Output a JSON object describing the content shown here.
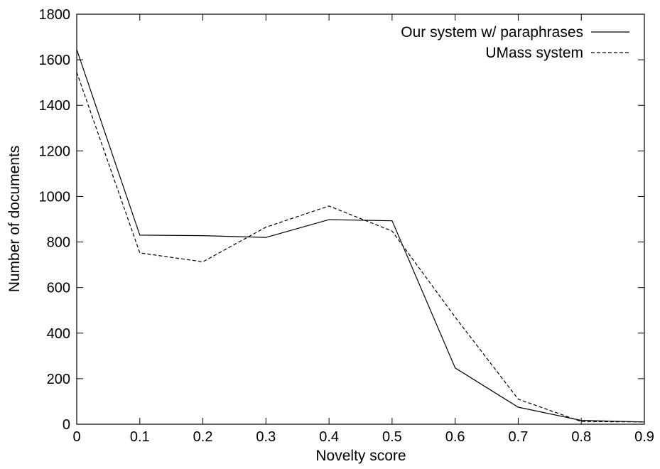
{
  "chart_data": {
    "type": "line",
    "title": "",
    "xlabel": "Novelty score",
    "ylabel": "Number of documents",
    "xlim": [
      0,
      0.9
    ],
    "ylim": [
      0,
      1800
    ],
    "xticks": [
      "0",
      "0.1",
      "0.2",
      "0.3",
      "0.4",
      "0.5",
      "0.6",
      "0.7",
      "0.8",
      "0.9"
    ],
    "yticks": [
      "0",
      "200",
      "400",
      "600",
      "800",
      "1000",
      "1200",
      "1400",
      "1600",
      "1800"
    ],
    "grid": false,
    "legend_position": "top-right",
    "series": [
      {
        "name": "Our system w/ paraphrases",
        "style": "solid",
        "color": "#000000",
        "x": [
          0,
          0.1,
          0.2,
          0.3,
          0.4,
          0.5,
          0.6,
          0.7,
          0.8,
          0.9
        ],
        "y": [
          1645,
          830,
          828,
          820,
          898,
          893,
          247,
          75,
          17,
          10
        ]
      },
      {
        "name": "UMass system",
        "style": "dashed",
        "color": "#000000",
        "x": [
          0,
          0.1,
          0.2,
          0.3,
          0.4,
          0.5,
          0.6,
          0.7,
          0.8,
          0.9
        ],
        "y": [
          1545,
          752,
          713,
          865,
          958,
          848,
          470,
          110,
          12,
          10
        ]
      }
    ]
  }
}
